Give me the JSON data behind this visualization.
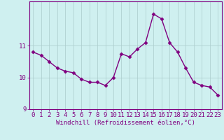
{
  "x": [
    0,
    1,
    2,
    3,
    4,
    5,
    6,
    7,
    8,
    9,
    10,
    11,
    12,
    13,
    14,
    15,
    16,
    17,
    18,
    19,
    20,
    21,
    22,
    23
  ],
  "y": [
    10.8,
    10.7,
    10.5,
    10.3,
    10.2,
    10.15,
    9.95,
    9.85,
    9.85,
    9.75,
    10.0,
    10.75,
    10.65,
    10.9,
    11.1,
    12.0,
    11.85,
    11.1,
    10.8,
    10.3,
    9.85,
    9.75,
    9.7,
    9.45
  ],
  "line_color": "#800080",
  "marker": "D",
  "marker_size": 2.5,
  "bg_color": "#cff0f0",
  "grid_color": "#aacccc",
  "xlabel": "Windchill (Refroidissement éolien,°C)",
  "ylim": [
    9.0,
    12.4
  ],
  "yticks": [
    9,
    10,
    11
  ],
  "xticks": [
    0,
    1,
    2,
    3,
    4,
    5,
    6,
    7,
    8,
    9,
    10,
    11,
    12,
    13,
    14,
    15,
    16,
    17,
    18,
    19,
    20,
    21,
    22,
    23
  ],
  "xlabel_fontsize": 6.5,
  "tick_fontsize": 6.5,
  "line_width": 1.0
}
